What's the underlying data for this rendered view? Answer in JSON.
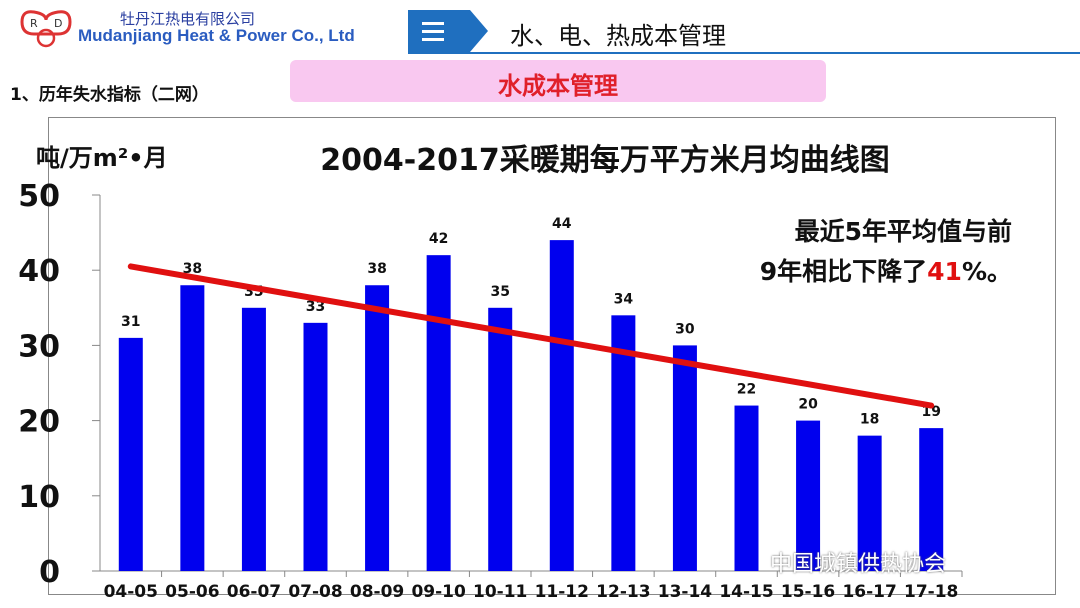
{
  "header": {
    "company_cn": "牡丹江热电有限公司",
    "company_en": "Mudanjiang Heat & Power  Co., Ltd",
    "logo_text": "RD",
    "section_title": "水、电、热成本管理",
    "section_icon": "three-lines-arrow-icon"
  },
  "subheading": "1、历年失水指标（二网）",
  "banner": "水成本管理",
  "watermark": "中国城镇供热协会",
  "chart_data": {
    "type": "bar",
    "title": "2004-2017采暖期每万平方米月均曲线图",
    "ylabel": "吨/万m²•月",
    "xlabel": "",
    "categories": [
      "04-05",
      "05-06",
      "06-07",
      "07-08",
      "08-09",
      "09-10",
      "10-11",
      "11-12",
      "12-13",
      "13-14",
      "14-15",
      "15-16",
      "16-17",
      "17-18"
    ],
    "values": [
      31,
      38,
      35,
      33,
      38,
      42,
      35,
      44,
      34,
      30,
      22,
      20,
      18,
      19
    ],
    "ylim": [
      0,
      50
    ],
    "yticks": [
      0,
      10,
      20,
      30,
      40,
      50
    ],
    "bar_color": "#0000ee",
    "trendline": {
      "color": "#e01010",
      "start": 40.5,
      "end": 22
    },
    "annotation": {
      "line1": "最近5年平均值与前",
      "line2_a": "9年相比下降了",
      "line2_pct": "41",
      "line2_b": "%。"
    }
  }
}
